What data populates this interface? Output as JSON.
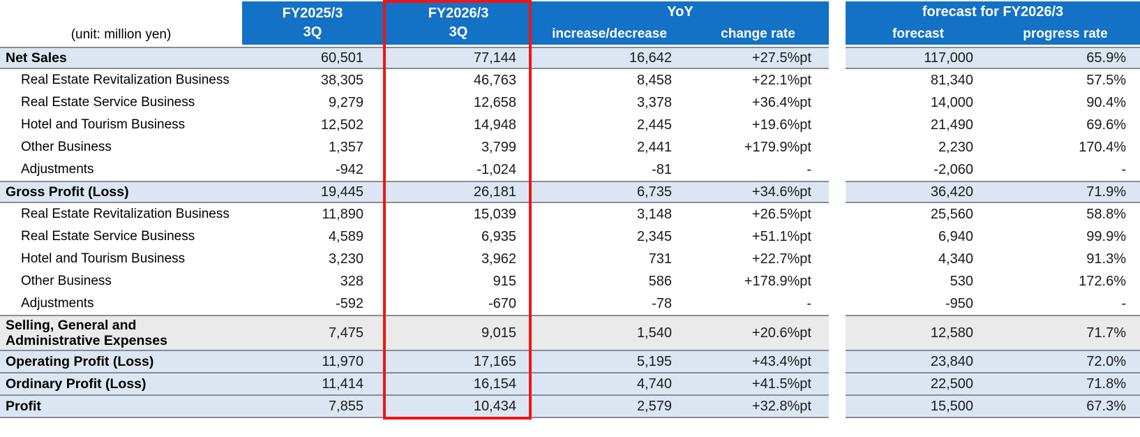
{
  "unit_label": "(unit: million yen)",
  "header": {
    "fy2025": {
      "year": "FY2025/3",
      "quarter": "3Q"
    },
    "fy2026": {
      "year": "FY2026/3",
      "quarter": "3Q"
    },
    "yoy": {
      "title": "YoY",
      "increase_decrease": "increase/decrease",
      "change_rate": "change rate"
    },
    "forecast_group": {
      "title": "forecast for FY2026/3",
      "forecast": "forecast",
      "progress_rate": "progress rate"
    }
  },
  "colors": {
    "header_blue": "#1371C6",
    "section_row_light_blue": "#DCE6F2",
    "sga_row_gray": "#EAEAEA",
    "highlight_red": "#EE1515",
    "border_gray": "#888C90"
  },
  "rows": [
    {
      "label": "Net Sales",
      "fy2025_3q": "60,501",
      "fy2026_3q": "77,144",
      "yoy_increase": "16,642",
      "yoy_change_rate": "+27.5%pt",
      "forecast": "117,000",
      "progress_rate": "65.9%"
    },
    {
      "label": "Real Estate Revitalization Business",
      "fy2025_3q": "38,305",
      "fy2026_3q": "46,763",
      "yoy_increase": "8,458",
      "yoy_change_rate": "+22.1%pt",
      "forecast": "81,340",
      "progress_rate": "57.5%"
    },
    {
      "label": "Real Estate Service Business",
      "fy2025_3q": "9,279",
      "fy2026_3q": "12,658",
      "yoy_increase": "3,378",
      "yoy_change_rate": "+36.4%pt",
      "forecast": "14,000",
      "progress_rate": "90.4%"
    },
    {
      "label": "Hotel and Tourism Business",
      "fy2025_3q": "12,502",
      "fy2026_3q": "14,948",
      "yoy_increase": "2,445",
      "yoy_change_rate": "+19.6%pt",
      "forecast": "21,490",
      "progress_rate": "69.6%"
    },
    {
      "label": "Other Business",
      "fy2025_3q": "1,357",
      "fy2026_3q": "3,799",
      "yoy_increase": "2,441",
      "yoy_change_rate": "+179.9%pt",
      "forecast": "2,230",
      "progress_rate": "170.4%"
    },
    {
      "label": "Adjustments",
      "fy2025_3q": "-942",
      "fy2026_3q": "-1,024",
      "yoy_increase": "-81",
      "yoy_change_rate": "-",
      "forecast": "-2,060",
      "progress_rate": "-"
    },
    {
      "label": "Gross Profit (Loss)",
      "fy2025_3q": "19,445",
      "fy2026_3q": "26,181",
      "yoy_increase": "6,735",
      "yoy_change_rate": "+34.6%pt",
      "forecast": "36,420",
      "progress_rate": "71.9%"
    },
    {
      "label": "Real Estate Revitalization Business",
      "fy2025_3q": "11,890",
      "fy2026_3q": "15,039",
      "yoy_increase": "3,148",
      "yoy_change_rate": "+26.5%pt",
      "forecast": "25,560",
      "progress_rate": "58.8%"
    },
    {
      "label": "Real Estate Service Business",
      "fy2025_3q": "4,589",
      "fy2026_3q": "6,935",
      "yoy_increase": "2,345",
      "yoy_change_rate": "+51.1%pt",
      "forecast": "6,940",
      "progress_rate": "99.9%"
    },
    {
      "label": "Hotel and Tourism Business",
      "fy2025_3q": "3,230",
      "fy2026_3q": "3,962",
      "yoy_increase": "731",
      "yoy_change_rate": "+22.7%pt",
      "forecast": "4,340",
      "progress_rate": "91.3%"
    },
    {
      "label": "Other Business",
      "fy2025_3q": "328",
      "fy2026_3q": "915",
      "yoy_increase": "586",
      "yoy_change_rate": "+178.9%pt",
      "forecast": "530",
      "progress_rate": "172.6%"
    },
    {
      "label": "Adjustments",
      "fy2025_3q": "-592",
      "fy2026_3q": "-670",
      "yoy_increase": "-78",
      "yoy_change_rate": "-",
      "forecast": "-950",
      "progress_rate": "-"
    },
    {
      "label_line1": "Selling, General and",
      "label_line2": "Administrative Expenses",
      "fy2025_3q": "7,475",
      "fy2026_3q": "9,015",
      "yoy_increase": "1,540",
      "yoy_change_rate": "+20.6%pt",
      "forecast": "12,580",
      "progress_rate": "71.7%"
    },
    {
      "label": "Operating Profit (Loss)",
      "fy2025_3q": "11,970",
      "fy2026_3q": "17,165",
      "yoy_increase": "5,195",
      "yoy_change_rate": "+43.4%pt",
      "forecast": "23,840",
      "progress_rate": "72.0%"
    },
    {
      "label": "Ordinary Profit (Loss)",
      "fy2025_3q": "11,414",
      "fy2026_3q": "16,154",
      "yoy_increase": "4,740",
      "yoy_change_rate": "+41.5%pt",
      "forecast": "22,500",
      "progress_rate": "71.8%"
    },
    {
      "label": "Profit",
      "fy2025_3q": "7,855",
      "fy2026_3q": "10,434",
      "yoy_increase": "2,579",
      "yoy_change_rate": "+32.8%pt",
      "forecast": "15,500",
      "progress_rate": "67.3%"
    }
  ]
}
